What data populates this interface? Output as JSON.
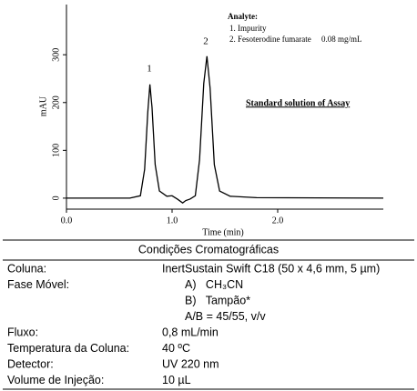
{
  "chart_data": {
    "type": "line",
    "x_label": "Time (min)",
    "y_label": "mAU",
    "xlim": [
      0,
      3
    ],
    "ylim": [
      -23,
      405
    ],
    "xticks": [
      {
        "value": 0,
        "label": "0.0"
      },
      {
        "value": 1,
        "label": "1.0"
      },
      {
        "value": 2,
        "label": "2.0"
      }
    ],
    "yticks": [
      0,
      100,
      200,
      300
    ],
    "peak_labels": [
      "1",
      "2"
    ],
    "legend_title": "Analyte:",
    "analytes": [
      "1. Impurity",
      "2. Fesoterodine fumarate     0.08 mg/mL"
    ],
    "annotation": "Standard solution of Assay",
    "series": [
      {
        "color": "#000000",
        "x": [
          0,
          0.6,
          0.7,
          0.74,
          0.77,
          0.79,
          0.81,
          0.84,
          0.88,
          0.95,
          1.0,
          1.05,
          1.1,
          1.13,
          1.17,
          1.22,
          1.26,
          1.3,
          1.33,
          1.36,
          1.4,
          1.45,
          1.55,
          1.8,
          3.0
        ],
        "values": [
          0,
          0,
          5,
          60,
          180,
          238,
          190,
          70,
          15,
          4,
          5,
          -2,
          -10,
          -5,
          -2,
          5,
          80,
          240,
          297,
          230,
          70,
          15,
          4,
          1,
          0
        ]
      }
    ]
  },
  "table": {
    "title": "Condições Cromatográficas",
    "rows": [
      {
        "label": "Coluna:",
        "values": [
          "InertSustain Swift C18 (50 x 4,6 mm, 5 µm)"
        ]
      },
      {
        "label": "Fase Móvel:",
        "values": [
          "A)   CH₃CN",
          "B)   Tampão*",
          "A/B = 45/55, v/v"
        ]
      },
      {
        "label": "Fluxo:",
        "values": [
          "0,8 mL/min"
        ]
      },
      {
        "label": "Temperatura da Coluna:",
        "values": [
          "40 ºC"
        ]
      },
      {
        "label": "Detector:",
        "values": [
          "UV 220 nm"
        ]
      },
      {
        "label": "Volume de Injeção:",
        "values": [
          "10 µL"
        ]
      }
    ]
  }
}
